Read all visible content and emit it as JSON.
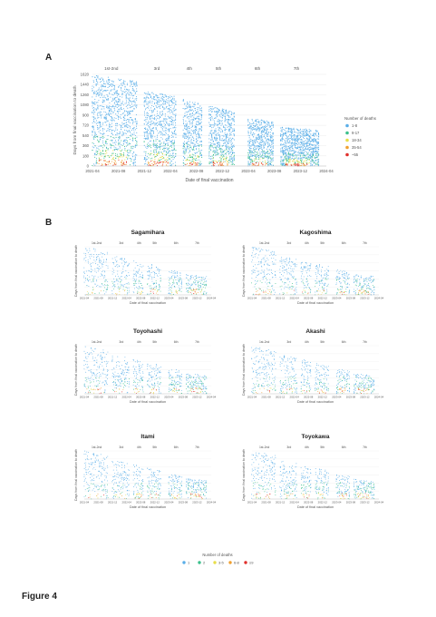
{
  "figure_label": "Figure 4",
  "panel_a_label": "A",
  "panel_b_label": "B",
  "chart_data": [
    {
      "type": "scatter",
      "panel": "A",
      "title": "",
      "xlabel": "Date of final vaccination",
      "ylabel": "Days from final vaccination to death",
      "x_ticks": [
        "2021-04",
        "2021-08",
        "2021-12",
        "2022-04",
        "2022-08",
        "2022-12",
        "2023-04",
        "2023-08",
        "2023-12",
        "2024-04"
      ],
      "y_ticks": [
        0,
        180,
        360,
        540,
        720,
        900,
        1080,
        1260,
        1440,
        1620
      ],
      "ylim": [
        0,
        1620
      ],
      "dose_labels": [
        "1st-2nd",
        "3rd",
        "4th",
        "5th",
        "6th",
        "7th"
      ],
      "legend": {
        "title": "Number of deaths",
        "entries": [
          "1-8",
          "9-17",
          "18-34",
          "35-54",
          "~55"
        ],
        "colors": [
          "#5aaee8",
          "#3cc08c",
          "#e8de4a",
          "#f0a030",
          "#e0302c"
        ]
      },
      "dose_clusters": [
        {
          "dose": "1st-2nd",
          "x_start": "2021-04",
          "x_end": "2021-11",
          "max_days": 1620
        },
        {
          "dose": "3rd",
          "x_start": "2021-12",
          "x_end": "2022-05",
          "max_days": 1330
        },
        {
          "dose": "4th",
          "x_start": "2022-06",
          "x_end": "2022-09",
          "max_days": 1180
        },
        {
          "dose": "5th",
          "x_start": "2022-10",
          "x_end": "2023-02",
          "max_days": 1060
        },
        {
          "dose": "6th",
          "x_start": "2023-04",
          "x_end": "2023-08",
          "max_days": 850
        },
        {
          "dose": "7th",
          "x_start": "2023-09",
          "x_end": "2024-03",
          "max_days": 690
        }
      ]
    },
    {
      "type": "scatter",
      "panel": "B",
      "title": "Sagamihara",
      "xlabel": "Date of final vaccination",
      "ylabel": "Days from final vaccination to death",
      "dose_labels": [
        "1st-2nd",
        "3rd",
        "4th",
        "5th",
        "6th",
        "7th"
      ]
    },
    {
      "type": "scatter",
      "panel": "B",
      "title": "Kagoshima",
      "xlabel": "Date of final vaccination",
      "ylabel": "Days from final vaccination to death",
      "dose_labels": [
        "1st-2nd",
        "3rd",
        "4th",
        "5th",
        "6th",
        "7th"
      ]
    },
    {
      "type": "scatter",
      "panel": "B",
      "title": "Toyohashi",
      "xlabel": "Date of final vaccination",
      "ylabel": "Days from final vaccination to death",
      "dose_labels": [
        "1st-2nd",
        "3rd",
        "4th",
        "5th",
        "6th",
        "7th"
      ]
    },
    {
      "type": "scatter",
      "panel": "B",
      "title": "Akashi",
      "xlabel": "Date of final vaccination",
      "ylabel": "Days from final vaccination to death",
      "dose_labels": [
        "1st-2nd",
        "3rd",
        "4th",
        "5th",
        "6th",
        "7th"
      ]
    },
    {
      "type": "scatter",
      "panel": "B",
      "title": "Itami",
      "xlabel": "Date of final vaccination",
      "ylabel": "Days from final vaccination to death",
      "dose_labels": [
        "1st-2nd",
        "3rd",
        "4th",
        "5th",
        "6th",
        "7th"
      ]
    },
    {
      "type": "scatter",
      "panel": "B",
      "title": "Toyokawa",
      "xlabel": "Date of final vaccination",
      "ylabel": "Days from final vaccination to death",
      "dose_labels": [
        "1st-2nd",
        "3rd",
        "4th",
        "5th",
        "6th",
        "7th"
      ]
    }
  ],
  "panel_b_legend": {
    "title": "Number of deaths",
    "entries": [
      "1",
      "2",
      "3-5",
      "6-8",
      "≥9"
    ],
    "colors": [
      "#5aaee8",
      "#3cc08c",
      "#e8de4a",
      "#f0a030",
      "#e0302c"
    ]
  }
}
